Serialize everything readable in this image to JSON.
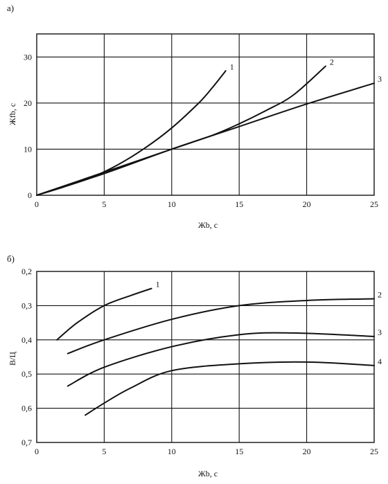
{
  "chart_data": [
    {
      "panel_label": "а)",
      "type": "line",
      "xlabel": "Жb, c",
      "ylabel": "Жfb, c",
      "xlim": [
        0,
        25
      ],
      "ylim": [
        0,
        35
      ],
      "xticks": [
        0,
        5,
        10,
        15,
        20,
        25
      ],
      "yticks": [
        0,
        10,
        20,
        30
      ],
      "grid": true,
      "series": [
        {
          "name": "1",
          "points": [
            [
              0,
              0
            ],
            [
              2,
              1.8
            ],
            [
              4,
              3.8
            ],
            [
              6,
              6.6
            ],
            [
              8,
              10.2
            ],
            [
              10,
              14.6
            ],
            [
              12,
              20.0
            ],
            [
              13,
              23.3
            ],
            [
              14,
              27.0
            ]
          ]
        },
        {
          "name": "2",
          "points": [
            [
              0,
              0
            ],
            [
              5,
              5
            ],
            [
              10,
              10
            ],
            [
              13,
              13
            ],
            [
              15,
              15.5
            ],
            [
              17,
              18.4
            ],
            [
              19,
              21.7
            ],
            [
              21.4,
              28.0
            ]
          ]
        },
        {
          "name": "3",
          "points": [
            [
              0,
              0
            ],
            [
              5,
              4.7
            ],
            [
              10,
              10
            ],
            [
              15,
              14.9
            ],
            [
              20,
              19.8
            ],
            [
              25,
              24.3
            ]
          ]
        }
      ]
    },
    {
      "panel_label": "б)",
      "type": "line",
      "xlabel": "Жb, c",
      "ylabel": "В/Ц",
      "xlim": [
        0,
        25
      ],
      "ylim": [
        0.2,
        0.7
      ],
      "y_inverted": true,
      "xticks": [
        0,
        5,
        10,
        15,
        20,
        25
      ],
      "yticks": [
        0.2,
        0.3,
        0.4,
        0.5,
        0.6,
        0.7
      ],
      "ytick_labels": [
        "0,2",
        "0,3",
        "0,4",
        "0,5",
        "0,6",
        "0,7"
      ],
      "grid": true,
      "series": [
        {
          "name": "1",
          "points": [
            [
              1.5,
              0.4
            ],
            [
              3,
              0.35
            ],
            [
              5,
              0.3
            ],
            [
              7,
              0.27
            ],
            [
              8.5,
              0.25
            ]
          ]
        },
        {
          "name": "2",
          "points": [
            [
              2.3,
              0.44
            ],
            [
              5,
              0.4
            ],
            [
              10,
              0.34
            ],
            [
              15,
              0.3
            ],
            [
              20,
              0.285
            ],
            [
              25,
              0.28
            ]
          ]
        },
        {
          "name": "3",
          "points": [
            [
              2.3,
              0.535
            ],
            [
              5,
              0.48
            ],
            [
              10,
              0.42
            ],
            [
              15,
              0.385
            ],
            [
              19,
              0.38
            ],
            [
              25,
              0.39
            ]
          ]
        },
        {
          "name": "4",
          "points": [
            [
              3.6,
              0.62
            ],
            [
              5,
              0.585
            ],
            [
              7,
              0.54
            ],
            [
              10,
              0.49
            ],
            [
              15,
              0.47
            ],
            [
              20,
              0.465
            ],
            [
              25,
              0.475
            ]
          ]
        }
      ]
    }
  ]
}
